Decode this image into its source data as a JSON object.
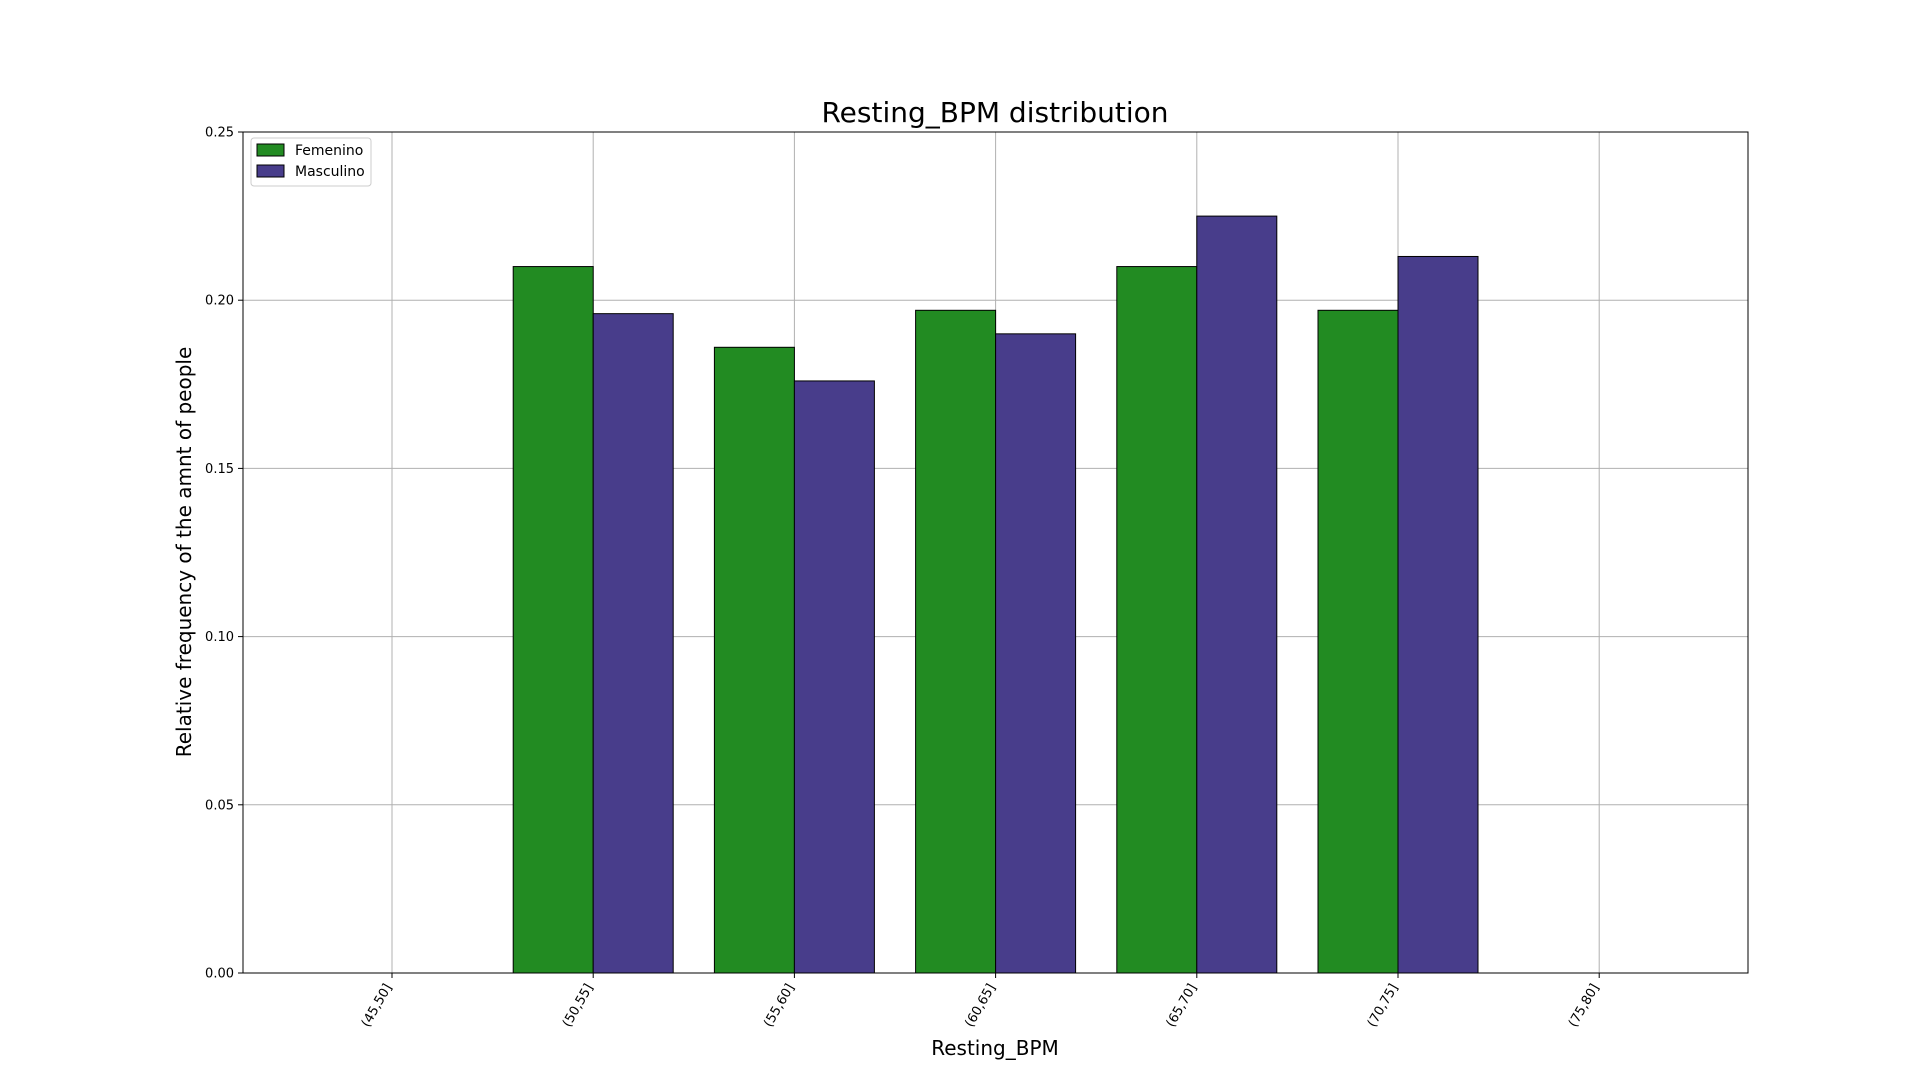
{
  "chart_data": {
    "type": "bar",
    "title": "Resting_BPM distribution",
    "xlabel": "Resting_BPM",
    "ylabel": "Relative frequency of the amnt of people",
    "categories": [
      "(45,50]",
      "(50,55]",
      "(55,60]",
      "(60,65]",
      "(65,70]",
      "(70,75]",
      "(75,80]"
    ],
    "series": [
      {
        "name": "Femenino",
        "color": "#228B22",
        "values": [
          0.0,
          0.21,
          0.186,
          0.197,
          0.21,
          0.197,
          0.0
        ]
      },
      {
        "name": "Masculino",
        "color": "#483D8B",
        "values": [
          0.0,
          0.196,
          0.176,
          0.19,
          0.225,
          0.213,
          0.0
        ]
      }
    ],
    "ylim": [
      0,
      0.25
    ],
    "yticks": [
      "0.00",
      "0.05",
      "0.10",
      "0.15",
      "0.20",
      "0.25"
    ],
    "grid": true,
    "legend_position": "top-left"
  }
}
